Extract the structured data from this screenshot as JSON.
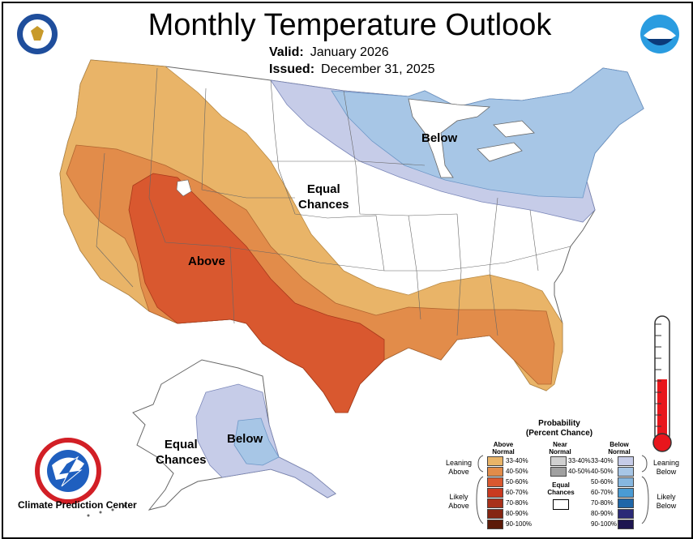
{
  "header": {
    "title": "Monthly Temperature Outlook",
    "valid_label": "Valid:",
    "valid_value": "January 2026",
    "issued_label": "Issued:",
    "issued_value": "December 31, 2025"
  },
  "map_labels": {
    "below_conus": "Below",
    "equal_conus_1": "Equal",
    "equal_conus_2": "Chances",
    "above": "Above",
    "equal_ak_1": "Equal",
    "equal_ak_2": "Chances",
    "below_ak": "Below"
  },
  "footer": {
    "cpc": "Climate Prediction Center"
  },
  "legend": {
    "title_1": "Probability",
    "title_2": "(Percent Chance)",
    "above_head_1": "Above",
    "above_head_2": "Normal",
    "near_head_1": "Near",
    "near_head_2": "Normal",
    "below_head_1": "Below",
    "below_head_2": "Normal",
    "leaning_above_1": "Leaning",
    "leaning_above_2": "Above",
    "likely_above_1": "Likely",
    "likely_above_2": "Above",
    "leaning_below_1": "Leaning",
    "leaning_below_2": "Below",
    "likely_below_1": "Likely",
    "likely_below_2": "Below",
    "equal_1": "Equal",
    "equal_2": "Chances",
    "above_ranges": [
      "33-40%",
      "40-50%",
      "50-60%",
      "60-70%",
      "70-80%",
      "80-90%",
      "90-100%"
    ],
    "near_ranges": [
      "33-40%",
      "40-50%"
    ],
    "below_ranges": [
      "33-40%",
      "40-50%",
      "50-60%",
      "60-70%",
      "70-80%",
      "80-90%",
      "90-100%"
    ]
  },
  "colors": {
    "above": [
      "#e9b468",
      "#e28c4a",
      "#d9582f",
      "#c93a20",
      "#a8311a",
      "#852511",
      "#5c1a08"
    ],
    "near": [
      "#d0d0d0",
      "#a0a0a0"
    ],
    "below": [
      "#c6cce8",
      "#a7c6e6",
      "#86b7e0",
      "#4a9bd4",
      "#1f66a8",
      "#2b2a77",
      "#1e1650"
    ],
    "thermometer_red": "#e8161c"
  }
}
